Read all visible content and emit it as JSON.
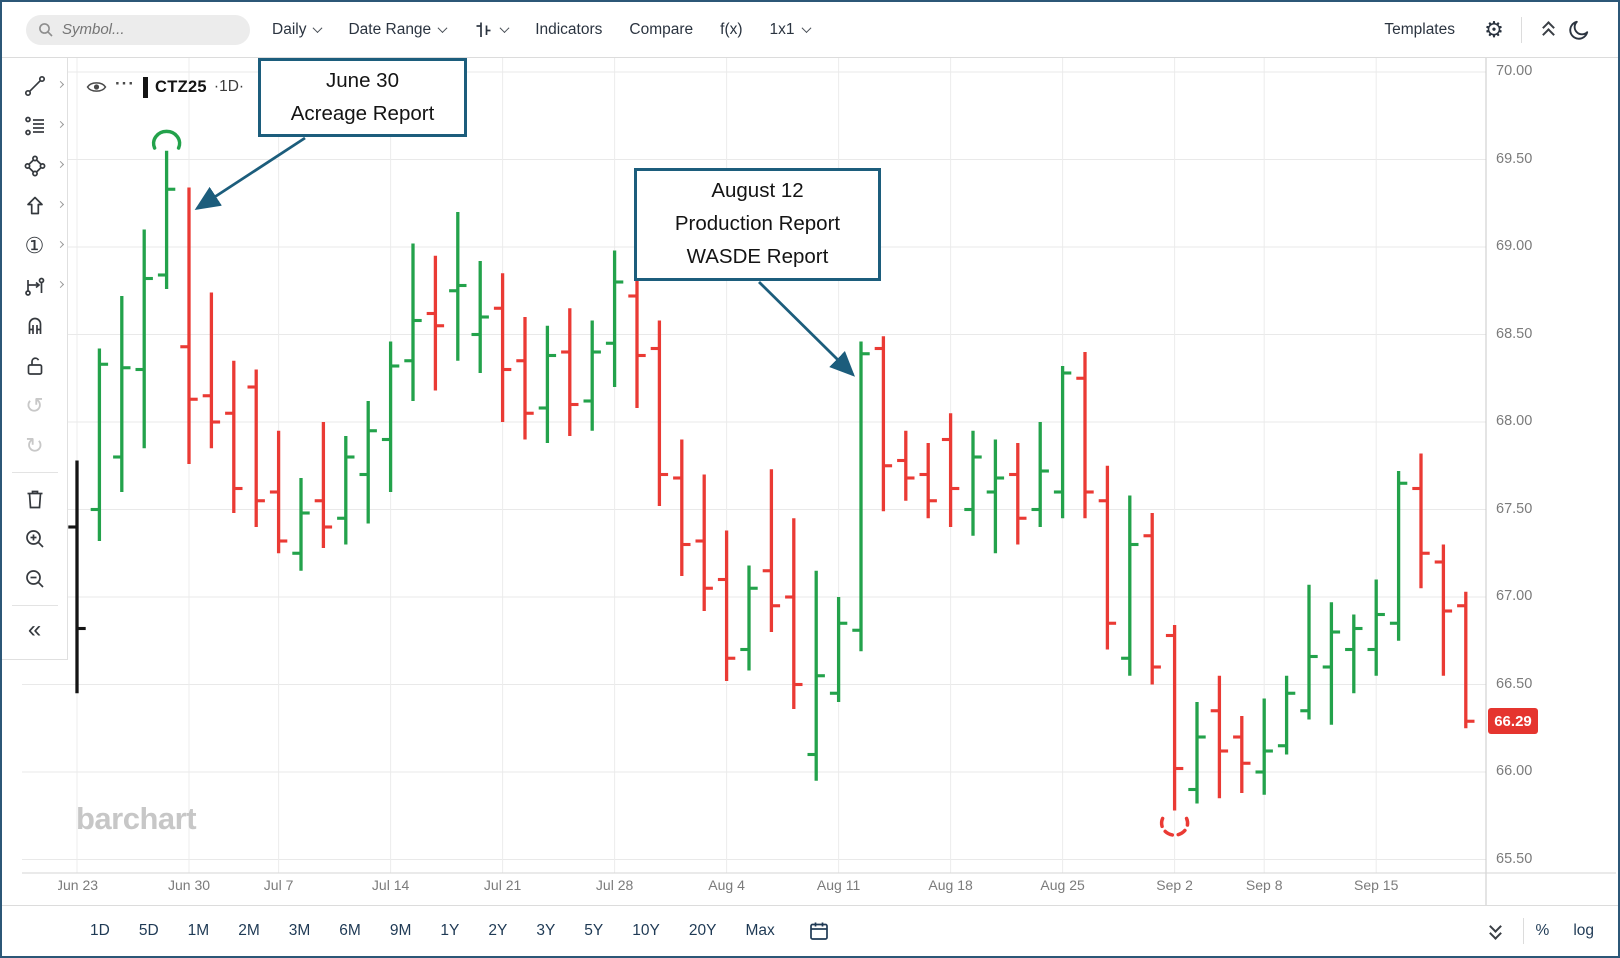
{
  "toolbar": {
    "search_placeholder": "Symbol...",
    "daily": "Daily",
    "date_range": "Date Range",
    "indicators": "Indicators",
    "compare": "Compare",
    "fx": "f(x)",
    "layout_grid": "1x1",
    "templates": "Templates"
  },
  "icons": {
    "gear": "⚙",
    "undo": "↺",
    "redo": "↻",
    "circle_one": "①",
    "collapse": "«"
  },
  "legend": {
    "menu_dots": "···",
    "symbol": "CTZ25",
    "interval_display": "·1D·"
  },
  "watermark": "barchart",
  "annotations": {
    "box1": {
      "line1": "June 30",
      "line2": "Acreage Report"
    },
    "box2": {
      "line1": "August 12",
      "line2": "Production Report",
      "line3": "WASDE Report"
    },
    "arrows": [
      {
        "from": [
          303,
          136
        ],
        "to_bar": 5,
        "to_price": 69.22,
        "x_off": 8
      },
      {
        "from": [
          757,
          280
        ],
        "to_bar": 35,
        "to_price": 68.27,
        "x_off": -8
      }
    ],
    "arcs": [
      {
        "bar": 4,
        "price": 69.6,
        "side": "top",
        "color": "#23a24b",
        "dashed": false
      },
      {
        "bar": 49,
        "price": 65.7,
        "side": "bottom",
        "color": "#ea3a34",
        "dashed": true
      }
    ]
  },
  "price_axis": {
    "labels": [
      "70.00",
      "69.50",
      "69.00",
      "68.50",
      "68.00",
      "67.50",
      "67.00",
      "66.50",
      "66.00",
      "65.50"
    ],
    "last_price": "66.29"
  },
  "date_axis": {
    "ticks": [
      {
        "i": 0,
        "label": "Jun 23"
      },
      {
        "i": 5,
        "label": "Jun 30"
      },
      {
        "i": 9,
        "label": "Jul 7"
      },
      {
        "i": 14,
        "label": "Jul 14"
      },
      {
        "i": 19,
        "label": "Jul 21"
      },
      {
        "i": 24,
        "label": "Jul 28"
      },
      {
        "i": 29,
        "label": "Aug 4"
      },
      {
        "i": 34,
        "label": "Aug 11"
      },
      {
        "i": 39,
        "label": "Aug 18"
      },
      {
        "i": 44,
        "label": "Aug 25"
      },
      {
        "i": 49,
        "label": "Sep 2"
      },
      {
        "i": 53,
        "label": "Sep 8"
      },
      {
        "i": 58,
        "label": "Sep 15"
      }
    ]
  },
  "bottom_toolbar": {
    "ranges": [
      "1D",
      "5D",
      "1M",
      "2M",
      "3M",
      "6M",
      "9M",
      "1Y",
      "2Y",
      "3Y",
      "5Y",
      "10Y",
      "20Y",
      "Max"
    ],
    "percent": "%",
    "log": "log"
  },
  "chart_data": {
    "type": "ohlc-bar",
    "symbol": "CTZ25",
    "interval": "1D",
    "up_color": "#23a24b",
    "down_color": "#ea3a34",
    "neutral_color": "#141414",
    "ylim": [
      65.5,
      70.0
    ],
    "grid": true,
    "bars": [
      {
        "d": "Jun 23",
        "o": 67.4,
        "h": 67.78,
        "l": 66.45,
        "c": 66.82,
        "k": 1
      },
      {
        "d": "Jun 24",
        "o": 67.5,
        "h": 68.42,
        "l": 67.32,
        "c": 68.33
      },
      {
        "d": "Jun 25",
        "o": 67.8,
        "h": 68.72,
        "l": 67.6,
        "c": 68.31
      },
      {
        "d": "Jun 26",
        "o": 68.3,
        "h": 69.1,
        "l": 67.85,
        "c": 68.82
      },
      {
        "d": "Jun 27",
        "o": 68.84,
        "h": 69.55,
        "l": 68.76,
        "c": 69.33
      },
      {
        "d": "Jun 30",
        "o": 68.43,
        "h": 69.34,
        "l": 67.76,
        "c": 68.13
      },
      {
        "d": "Jul 1",
        "o": 68.15,
        "h": 68.74,
        "l": 67.85,
        "c": 68.0
      },
      {
        "d": "Jul 2",
        "o": 68.05,
        "h": 68.35,
        "l": 67.48,
        "c": 67.62
      },
      {
        "d": "Jul 3",
        "o": 68.2,
        "h": 68.3,
        "l": 67.4,
        "c": 67.55
      },
      {
        "d": "Jul 7",
        "o": 67.6,
        "h": 67.95,
        "l": 67.25,
        "c": 67.32
      },
      {
        "d": "Jul 8",
        "o": 67.25,
        "h": 67.68,
        "l": 67.15,
        "c": 67.48
      },
      {
        "d": "Jul 9",
        "o": 67.55,
        "h": 68.0,
        "l": 67.28,
        "c": 67.4
      },
      {
        "d": "Jul 10",
        "o": 67.45,
        "h": 67.92,
        "l": 67.3,
        "c": 67.8
      },
      {
        "d": "Jul 11",
        "o": 67.7,
        "h": 68.12,
        "l": 67.42,
        "c": 67.95
      },
      {
        "d": "Jul 14",
        "o": 67.9,
        "h": 68.46,
        "l": 67.6,
        "c": 68.32
      },
      {
        "d": "Jul 15",
        "o": 68.35,
        "h": 69.02,
        "l": 68.12,
        "c": 68.58
      },
      {
        "d": "Jul 16",
        "o": 68.62,
        "h": 68.95,
        "l": 68.18,
        "c": 68.55
      },
      {
        "d": "Jul 17",
        "o": 68.75,
        "h": 69.2,
        "l": 68.35,
        "c": 68.78
      },
      {
        "d": "Jul 18",
        "o": 68.5,
        "h": 68.92,
        "l": 68.28,
        "c": 68.6
      },
      {
        "d": "Jul 21",
        "o": 68.65,
        "h": 68.85,
        "l": 68.0,
        "c": 68.3
      },
      {
        "d": "Jul 22",
        "o": 68.35,
        "h": 68.6,
        "l": 67.9,
        "c": 68.05
      },
      {
        "d": "Jul 23",
        "o": 68.08,
        "h": 68.55,
        "l": 67.88,
        "c": 68.38
      },
      {
        "d": "Jul 24",
        "o": 68.4,
        "h": 68.65,
        "l": 67.92,
        "c": 68.1
      },
      {
        "d": "Jul 25",
        "o": 68.12,
        "h": 68.58,
        "l": 67.95,
        "c": 68.4
      },
      {
        "d": "Jul 28",
        "o": 68.45,
        "h": 68.98,
        "l": 68.2,
        "c": 68.8
      },
      {
        "d": "Jul 29",
        "o": 68.72,
        "h": 68.88,
        "l": 68.08,
        "c": 68.38
      },
      {
        "d": "Jul 30",
        "o": 68.42,
        "h": 68.58,
        "l": 67.52,
        "c": 67.7
      },
      {
        "d": "Jul 31",
        "o": 67.68,
        "h": 67.9,
        "l": 67.12,
        "c": 67.3
      },
      {
        "d": "Aug 1",
        "o": 67.32,
        "h": 67.7,
        "l": 66.92,
        "c": 67.05
      },
      {
        "d": "Aug 4",
        "o": 67.1,
        "h": 67.38,
        "l": 66.52,
        "c": 66.65
      },
      {
        "d": "Aug 5",
        "o": 66.7,
        "h": 67.18,
        "l": 66.58,
        "c": 67.05
      },
      {
        "d": "Aug 6",
        "o": 67.15,
        "h": 67.73,
        "l": 66.8,
        "c": 66.95
      },
      {
        "d": "Aug 7",
        "o": 67.0,
        "h": 67.45,
        "l": 66.36,
        "c": 66.5
      },
      {
        "d": "Aug 8",
        "o": 66.1,
        "h": 67.15,
        "l": 65.95,
        "c": 66.55
      },
      {
        "d": "Aug 11",
        "o": 66.45,
        "h": 67.0,
        "l": 66.4,
        "c": 66.85
      },
      {
        "d": "Aug 12",
        "o": 66.81,
        "h": 68.46,
        "l": 66.69,
        "c": 68.39
      },
      {
        "d": "Aug 13",
        "o": 68.42,
        "h": 68.49,
        "l": 67.49,
        "c": 67.75
      },
      {
        "d": "Aug 14",
        "o": 67.78,
        "h": 67.95,
        "l": 67.55,
        "c": 67.68
      },
      {
        "d": "Aug 15",
        "o": 67.7,
        "h": 67.88,
        "l": 67.45,
        "c": 67.55
      },
      {
        "d": "Aug 18",
        "o": 67.9,
        "h": 68.05,
        "l": 67.4,
        "c": 67.62
      },
      {
        "d": "Aug 19",
        "o": 67.5,
        "h": 67.95,
        "l": 67.35,
        "c": 67.8
      },
      {
        "d": "Aug 20",
        "o": 67.6,
        "h": 67.9,
        "l": 67.25,
        "c": 67.68
      },
      {
        "d": "Aug 21",
        "o": 67.7,
        "h": 67.88,
        "l": 67.3,
        "c": 67.45
      },
      {
        "d": "Aug 22",
        "o": 67.5,
        "h": 68.0,
        "l": 67.4,
        "c": 67.72
      },
      {
        "d": "Aug 25",
        "o": 67.6,
        "h": 68.32,
        "l": 67.45,
        "c": 68.28
      },
      {
        "d": "Aug 26",
        "o": 68.25,
        "h": 68.4,
        "l": 67.45,
        "c": 67.6
      },
      {
        "d": "Aug 27",
        "o": 67.55,
        "h": 67.75,
        "l": 66.7,
        "c": 66.85
      },
      {
        "d": "Aug 28",
        "o": 66.65,
        "h": 67.58,
        "l": 66.55,
        "c": 67.3
      },
      {
        "d": "Aug 29",
        "o": 67.35,
        "h": 67.48,
        "l": 66.5,
        "c": 66.6
      },
      {
        "d": "Sep 2",
        "o": 66.78,
        "h": 66.84,
        "l": 65.78,
        "c": 66.02
      },
      {
        "d": "Sep 3",
        "o": 65.9,
        "h": 66.4,
        "l": 65.82,
        "c": 66.2
      },
      {
        "d": "Sep 4",
        "o": 66.35,
        "h": 66.55,
        "l": 65.85,
        "c": 66.12
      },
      {
        "d": "Sep 5",
        "o": 66.2,
        "h": 66.32,
        "l": 65.88,
        "c": 66.05
      },
      {
        "d": "Sep 8",
        "o": 66.0,
        "h": 66.42,
        "l": 65.87,
        "c": 66.12
      },
      {
        "d": "Sep 9",
        "o": 66.15,
        "h": 66.55,
        "l": 66.1,
        "c": 66.45
      },
      {
        "d": "Sep 10",
        "o": 66.35,
        "h": 67.07,
        "l": 66.3,
        "c": 66.66
      },
      {
        "d": "Sep 11",
        "o": 66.6,
        "h": 66.97,
        "l": 66.27,
        "c": 66.8
      },
      {
        "d": "Sep 12",
        "o": 66.7,
        "h": 66.9,
        "l": 66.45,
        "c": 66.82
      },
      {
        "d": "Sep 15",
        "o": 66.7,
        "h": 67.1,
        "l": 66.55,
        "c": 66.9
      },
      {
        "d": "Sep 16",
        "o": 66.85,
        "h": 67.72,
        "l": 66.75,
        "c": 67.65
      },
      {
        "d": "Sep 17",
        "o": 67.62,
        "h": 67.82,
        "l": 67.05,
        "c": 67.25
      },
      {
        "d": "Sep 18",
        "o": 67.2,
        "h": 67.3,
        "l": 66.55,
        "c": 66.92
      },
      {
        "d": "Sep 19",
        "o": 66.95,
        "h": 67.03,
        "l": 66.25,
        "c": 66.29
      }
    ]
  }
}
